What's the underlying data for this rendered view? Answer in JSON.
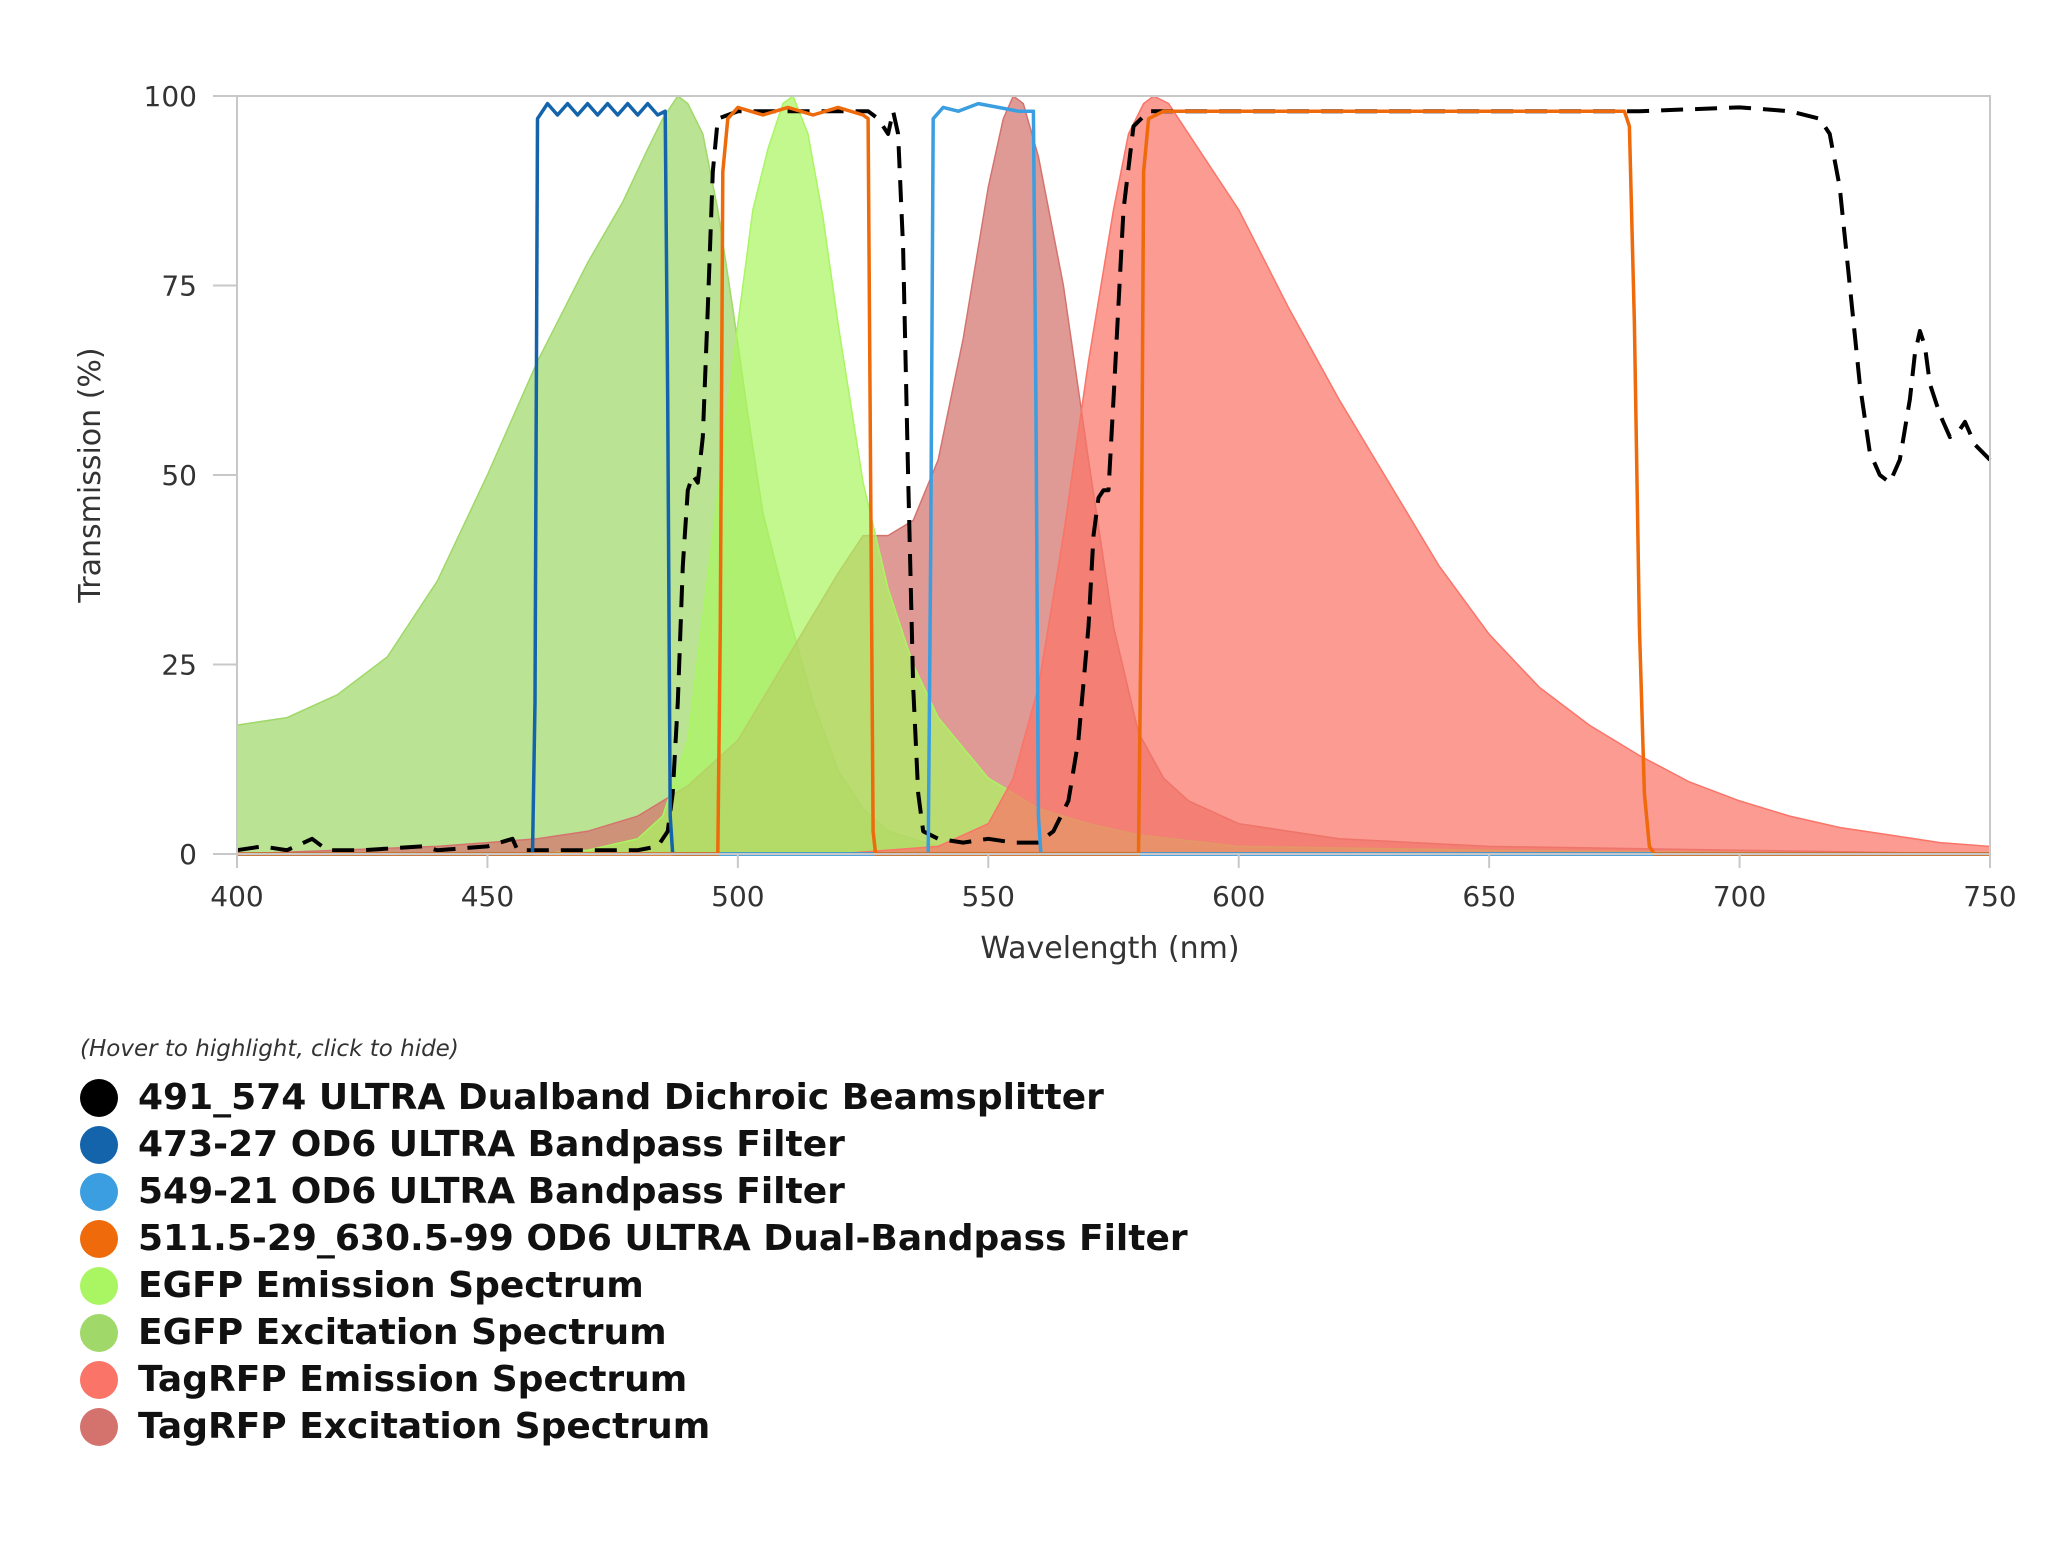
{
  "chart_data": {
    "type": "area",
    "title": "",
    "xlabel": "Wavelength (nm)",
    "ylabel": "Transmission (%)",
    "xlim": [
      400,
      750
    ],
    "ylim": [
      0,
      100
    ],
    "x_ticks": [
      400,
      450,
      500,
      550,
      600,
      650,
      700,
      750
    ],
    "y_ticks": [
      0,
      25,
      50,
      75,
      100
    ],
    "legend_hint": "(Hover to highlight, click to hide)",
    "legend_position": "bottom-left",
    "series": [
      {
        "name": "491_574 ULTRA Dualband Dichroic Beamsplitter",
        "color": "#000000",
        "kind": "dashed-line",
        "points": [
          [
            400,
            0.5
          ],
          [
            405,
            1
          ],
          [
            410,
            0.5
          ],
          [
            415,
            2
          ],
          [
            418,
            0.5
          ],
          [
            425,
            0.5
          ],
          [
            437,
            1
          ],
          [
            440,
            0.5
          ],
          [
            450,
            1
          ],
          [
            455,
            2
          ],
          [
            456,
            0.5
          ],
          [
            465,
            0.5
          ],
          [
            470,
            0.5
          ],
          [
            475,
            0.5
          ],
          [
            480,
            0.5
          ],
          [
            484,
            1
          ],
          [
            486,
            3
          ],
          [
            487,
            8
          ],
          [
            488,
            20
          ],
          [
            489,
            38
          ],
          [
            490,
            48
          ],
          [
            491,
            50
          ],
          [
            492,
            49
          ],
          [
            493,
            55
          ],
          [
            494,
            72
          ],
          [
            495,
            90
          ],
          [
            496,
            97
          ],
          [
            500,
            98
          ],
          [
            510,
            98
          ],
          [
            520,
            98
          ],
          [
            526,
            98
          ],
          [
            528,
            97
          ],
          [
            530,
            95
          ],
          [
            531,
            98
          ],
          [
            532,
            95
          ],
          [
            533,
            80
          ],
          [
            534,
            50
          ],
          [
            535,
            22
          ],
          [
            536,
            8
          ],
          [
            537,
            3
          ],
          [
            540,
            2
          ],
          [
            545,
            1.5
          ],
          [
            550,
            2
          ],
          [
            555,
            1.5
          ],
          [
            560,
            1.5
          ],
          [
            563,
            3
          ],
          [
            566,
            7
          ],
          [
            568,
            15
          ],
          [
            570,
            30
          ],
          [
            571,
            42
          ],
          [
            572,
            47
          ],
          [
            573,
            48
          ],
          [
            574,
            48
          ],
          [
            575,
            60
          ],
          [
            577,
            85
          ],
          [
            579,
            96
          ],
          [
            582,
            98
          ],
          [
            600,
            98
          ],
          [
            620,
            98
          ],
          [
            640,
            98
          ],
          [
            660,
            98
          ],
          [
            680,
            98
          ],
          [
            700,
            98.5
          ],
          [
            710,
            98
          ],
          [
            716,
            97
          ],
          [
            718,
            95
          ],
          [
            720,
            88
          ],
          [
            722,
            75
          ],
          [
            724,
            62
          ],
          [
            726,
            53
          ],
          [
            728,
            50
          ],
          [
            730,
            49
          ],
          [
            732,
            52
          ],
          [
            734,
            60
          ],
          [
            735,
            66
          ],
          [
            736,
            69
          ],
          [
            737,
            67
          ],
          [
            738,
            62
          ],
          [
            740,
            58
          ],
          [
            742,
            55
          ],
          [
            744,
            56
          ],
          [
            745,
            57
          ],
          [
            747,
            54
          ],
          [
            750,
            52
          ]
        ]
      },
      {
        "name": "473-27 OD6 ULTRA Bandpass Filter",
        "color": "#1464ac",
        "kind": "line",
        "points": [
          [
            400,
            0
          ],
          [
            459,
            0
          ],
          [
            459.5,
            20
          ],
          [
            460,
            97
          ],
          [
            462,
            99
          ],
          [
            464,
            97.5
          ],
          [
            466,
            99
          ],
          [
            468,
            97.5
          ],
          [
            470,
            99
          ],
          [
            472,
            97.5
          ],
          [
            474,
            99
          ],
          [
            476,
            97.5
          ],
          [
            478,
            99
          ],
          [
            480,
            97.5
          ],
          [
            482,
            99
          ],
          [
            484,
            97.5
          ],
          [
            485.5,
            98
          ],
          [
            486,
            60
          ],
          [
            486.5,
            5
          ],
          [
            487,
            0
          ],
          [
            750,
            0
          ]
        ]
      },
      {
        "name": "549-21 OD6 ULTRA Bandpass Filter",
        "color": "#3a9ee0",
        "kind": "line",
        "points": [
          [
            400,
            0
          ],
          [
            538,
            0
          ],
          [
            538.5,
            40
          ],
          [
            539,
            97
          ],
          [
            541,
            98.5
          ],
          [
            544,
            98
          ],
          [
            548,
            99
          ],
          [
            552,
            98.5
          ],
          [
            556,
            98
          ],
          [
            559,
            98
          ],
          [
            559.5,
            60
          ],
          [
            560,
            5
          ],
          [
            560.5,
            0
          ],
          [
            750,
            0
          ]
        ]
      },
      {
        "name": "511.5-29_630.5-99 OD6 ULTRA Dual-Bandpass Filter",
        "color": "#ee6a0a",
        "kind": "line",
        "points": [
          [
            400,
            0
          ],
          [
            496,
            0
          ],
          [
            496.5,
            30
          ],
          [
            497,
            90
          ],
          [
            498,
            97
          ],
          [
            500,
            98.5
          ],
          [
            505,
            97.5
          ],
          [
            510,
            98.5
          ],
          [
            515,
            97.5
          ],
          [
            520,
            98.5
          ],
          [
            525,
            97.5
          ],
          [
            526,
            97
          ],
          [
            526.5,
            50
          ],
          [
            527,
            3
          ],
          [
            527.5,
            0
          ],
          [
            580,
            0
          ],
          [
            580.5,
            30
          ],
          [
            581,
            90
          ],
          [
            582,
            97
          ],
          [
            585,
            98
          ],
          [
            600,
            98
          ],
          [
            620,
            98
          ],
          [
            640,
            98
          ],
          [
            660,
            98
          ],
          [
            677,
            98
          ],
          [
            678,
            96
          ],
          [
            679,
            70
          ],
          [
            680,
            30
          ],
          [
            681,
            8
          ],
          [
            682,
            1
          ],
          [
            683,
            0
          ],
          [
            750,
            0
          ]
        ]
      },
      {
        "name": "EGFP Emission Spectrum",
        "color": "#aaf562",
        "kind": "area",
        "points": [
          [
            400,
            0
          ],
          [
            460,
            0
          ],
          [
            470,
            0.5
          ],
          [
            480,
            2
          ],
          [
            485,
            5
          ],
          [
            490,
            15
          ],
          [
            495,
            42
          ],
          [
            500,
            70
          ],
          [
            503,
            85
          ],
          [
            506,
            93
          ],
          [
            509,
            99
          ],
          [
            511,
            100
          ],
          [
            514,
            95
          ],
          [
            517,
            84
          ],
          [
            520,
            70
          ],
          [
            525,
            49
          ],
          [
            530,
            35
          ],
          [
            535,
            25
          ],
          [
            540,
            18
          ],
          [
            550,
            10
          ],
          [
            560,
            6
          ],
          [
            570,
            4
          ],
          [
            580,
            2.5
          ],
          [
            600,
            1
          ],
          [
            650,
            0.5
          ],
          [
            700,
            0.2
          ],
          [
            750,
            0
          ]
        ]
      },
      {
        "name": "EGFP Excitation Spectrum",
        "color": "#a0d86a",
        "kind": "area",
        "points": [
          [
            400,
            17
          ],
          [
            410,
            18
          ],
          [
            420,
            21
          ],
          [
            430,
            26
          ],
          [
            440,
            36
          ],
          [
            450,
            50
          ],
          [
            460,
            65
          ],
          [
            470,
            78
          ],
          [
            477,
            86
          ],
          [
            482,
            93
          ],
          [
            485,
            97
          ],
          [
            488,
            100
          ],
          [
            490,
            99
          ],
          [
            493,
            95
          ],
          [
            496,
            85
          ],
          [
            499,
            72
          ],
          [
            502,
            58
          ],
          [
            505,
            45
          ],
          [
            510,
            32
          ],
          [
            515,
            20
          ],
          [
            520,
            11
          ],
          [
            525,
            6
          ],
          [
            530,
            3
          ],
          [
            540,
            1
          ],
          [
            550,
            0.5
          ],
          [
            600,
            0
          ],
          [
            750,
            0
          ]
        ]
      },
      {
        "name": "TagRFP Emission Spectrum",
        "color": "#fa7468",
        "kind": "area",
        "points": [
          [
            400,
            0
          ],
          [
            520,
            0
          ],
          [
            540,
            1
          ],
          [
            550,
            4
          ],
          [
            555,
            10
          ],
          [
            560,
            22
          ],
          [
            565,
            42
          ],
          [
            570,
            65
          ],
          [
            575,
            85
          ],
          [
            578,
            95
          ],
          [
            581,
            99
          ],
          [
            583,
            100
          ],
          [
            586,
            99
          ],
          [
            590,
            95
          ],
          [
            600,
            85
          ],
          [
            610,
            72
          ],
          [
            620,
            60
          ],
          [
            630,
            49
          ],
          [
            640,
            38
          ],
          [
            650,
            29
          ],
          [
            660,
            22
          ],
          [
            670,
            17
          ],
          [
            680,
            13
          ],
          [
            690,
            9.5
          ],
          [
            700,
            7
          ],
          [
            710,
            5
          ],
          [
            720,
            3.5
          ],
          [
            730,
            2.5
          ],
          [
            740,
            1.5
          ],
          [
            750,
            1
          ]
        ]
      },
      {
        "name": "TagRFP Excitation Spectrum",
        "color": "#d4736e",
        "kind": "area",
        "points": [
          [
            400,
            0
          ],
          [
            420,
            0.5
          ],
          [
            440,
            1
          ],
          [
            460,
            2
          ],
          [
            470,
            3
          ],
          [
            480,
            5
          ],
          [
            490,
            9
          ],
          [
            500,
            15
          ],
          [
            510,
            26
          ],
          [
            520,
            37
          ],
          [
            525,
            42
          ],
          [
            530,
            42
          ],
          [
            535,
            44
          ],
          [
            540,
            52
          ],
          [
            545,
            68
          ],
          [
            550,
            88
          ],
          [
            553,
            97
          ],
          [
            555,
            100
          ],
          [
            557,
            99
          ],
          [
            560,
            92
          ],
          [
            565,
            75
          ],
          [
            570,
            52
          ],
          [
            575,
            30
          ],
          [
            580,
            16
          ],
          [
            585,
            10
          ],
          [
            590,
            7
          ],
          [
            600,
            4
          ],
          [
            620,
            2
          ],
          [
            650,
            1
          ],
          [
            700,
            0.5
          ],
          [
            750,
            0
          ]
        ]
      }
    ]
  }
}
